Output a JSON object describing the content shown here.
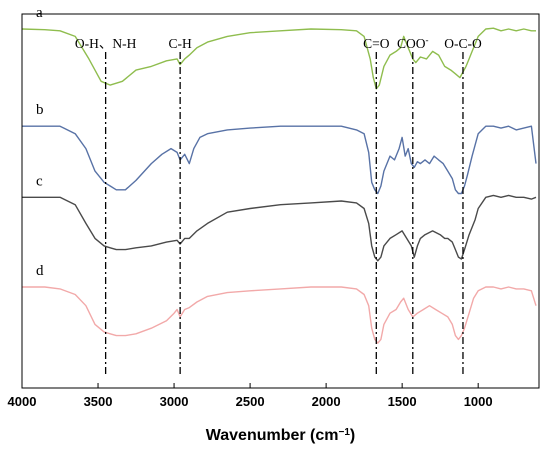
{
  "chart_data": {
    "type": "line",
    "title": "",
    "xlabel": "Wavenumber (cm",
    "xlabel_sup": "−1",
    "xlabel_close": ")",
    "ylabel": "",
    "xlim": [
      4000,
      600
    ],
    "x_reversed": true,
    "y_ticks_shown": false,
    "grid": false,
    "x_ticks": [
      4000,
      3500,
      3000,
      2500,
      2000,
      1500,
      1000
    ],
    "x_tick_labels": [
      "4000",
      "3500",
      "3000",
      "2500",
      "2000",
      "1500",
      "1000"
    ],
    "series": [
      {
        "name": "a",
        "color": "#8fbd4e",
        "x": [
          4000,
          3850,
          3750,
          3650,
          3560,
          3480,
          3420,
          3340,
          3250,
          3150,
          3050,
          2980,
          2960,
          2930,
          2900,
          2850,
          2780,
          2650,
          2500,
          2300,
          2100,
          1900,
          1800,
          1750,
          1710,
          1690,
          1670,
          1650,
          1620,
          1580,
          1540,
          1510,
          1490,
          1460,
          1430,
          1410,
          1380,
          1340,
          1300,
          1260,
          1220,
          1180,
          1150,
          1120,
          1100,
          1080,
          1060,
          1040,
          1000,
          950,
          900,
          850,
          800,
          750,
          700,
          650,
          620
        ],
        "y": [
          0.96,
          0.958,
          0.955,
          0.94,
          0.88,
          0.82,
          0.81,
          0.82,
          0.85,
          0.86,
          0.875,
          0.88,
          0.865,
          0.88,
          0.89,
          0.91,
          0.925,
          0.94,
          0.95,
          0.955,
          0.96,
          0.958,
          0.955,
          0.94,
          0.88,
          0.83,
          0.8,
          0.81,
          0.86,
          0.89,
          0.9,
          0.91,
          0.94,
          0.91,
          0.88,
          0.87,
          0.885,
          0.88,
          0.9,
          0.89,
          0.86,
          0.85,
          0.84,
          0.83,
          0.845,
          0.86,
          0.88,
          0.9,
          0.94,
          0.96,
          0.962,
          0.955,
          0.96,
          0.955,
          0.96,
          0.955,
          0.955
        ]
      },
      {
        "name": "b",
        "color": "#5872a6",
        "x": [
          4000,
          3850,
          3750,
          3650,
          3580,
          3520,
          3460,
          3420,
          3380,
          3320,
          3250,
          3150,
          3080,
          3020,
          2980,
          2960,
          2930,
          2900,
          2870,
          2830,
          2780,
          2650,
          2500,
          2300,
          2100,
          1900,
          1800,
          1750,
          1720,
          1700,
          1680,
          1660,
          1640,
          1620,
          1580,
          1550,
          1520,
          1500,
          1480,
          1460,
          1440,
          1420,
          1400,
          1380,
          1350,
          1320,
          1290,
          1260,
          1230,
          1200,
          1170,
          1150,
          1130,
          1110,
          1090,
          1070,
          1040,
          1000,
          950,
          900,
          850,
          800,
          750,
          700,
          650,
          620
        ],
        "y": [
          0.7,
          0.7,
          0.7,
          0.68,
          0.64,
          0.58,
          0.55,
          0.54,
          0.53,
          0.53,
          0.555,
          0.6,
          0.625,
          0.64,
          0.63,
          0.61,
          0.625,
          0.6,
          0.64,
          0.67,
          0.68,
          0.69,
          0.695,
          0.7,
          0.7,
          0.7,
          0.69,
          0.68,
          0.63,
          0.55,
          0.53,
          0.52,
          0.54,
          0.58,
          0.62,
          0.61,
          0.64,
          0.67,
          0.62,
          0.64,
          0.6,
          0.59,
          0.605,
          0.6,
          0.61,
          0.6,
          0.62,
          0.61,
          0.6,
          0.58,
          0.56,
          0.53,
          0.52,
          0.52,
          0.54,
          0.57,
          0.62,
          0.68,
          0.7,
          0.7,
          0.695,
          0.7,
          0.69,
          0.695,
          0.7,
          0.6
        ]
      },
      {
        "name": "c",
        "color": "#4a4a4a",
        "x": [
          4000,
          3850,
          3750,
          3650,
          3580,
          3520,
          3460,
          3420,
          3380,
          3320,
          3250,
          3150,
          3050,
          2980,
          2960,
          2930,
          2900,
          2850,
          2780,
          2650,
          2500,
          2300,
          2100,
          1900,
          1800,
          1750,
          1720,
          1700,
          1680,
          1660,
          1640,
          1620,
          1580,
          1540,
          1500,
          1470,
          1440,
          1420,
          1400,
          1380,
          1350,
          1300,
          1250,
          1220,
          1200,
          1170,
          1150,
          1130,
          1110,
          1090,
          1060,
          1020,
          1000,
          950,
          900,
          850,
          800,
          750,
          700,
          650,
          620
        ],
        "y": [
          0.51,
          0.51,
          0.51,
          0.49,
          0.44,
          0.4,
          0.38,
          0.375,
          0.37,
          0.37,
          0.375,
          0.38,
          0.39,
          0.395,
          0.385,
          0.4,
          0.4,
          0.42,
          0.44,
          0.47,
          0.48,
          0.49,
          0.495,
          0.5,
          0.495,
          0.48,
          0.44,
          0.38,
          0.35,
          0.34,
          0.35,
          0.38,
          0.4,
          0.41,
          0.42,
          0.4,
          0.38,
          0.35,
          0.38,
          0.4,
          0.41,
          0.42,
          0.41,
          0.4,
          0.4,
          0.39,
          0.37,
          0.35,
          0.345,
          0.37,
          0.41,
          0.45,
          0.48,
          0.51,
          0.515,
          0.51,
          0.515,
          0.51,
          0.51,
          0.505,
          0.51
        ]
      },
      {
        "name": "d",
        "color": "#f2a9a9",
        "x": [
          4000,
          3850,
          3750,
          3650,
          3580,
          3520,
          3460,
          3420,
          3380,
          3320,
          3250,
          3150,
          3050,
          3000,
          2980,
          2960,
          2930,
          2900,
          2850,
          2780,
          2650,
          2500,
          2300,
          2100,
          1900,
          1800,
          1750,
          1720,
          1700,
          1680,
          1660,
          1640,
          1620,
          1580,
          1540,
          1510,
          1490,
          1460,
          1430,
          1400,
          1360,
          1320,
          1280,
          1240,
          1200,
          1170,
          1150,
          1130,
          1110,
          1090,
          1060,
          1030,
          1000,
          950,
          900,
          850,
          800,
          750,
          700,
          650,
          620
        ],
        "y": [
          0.27,
          0.27,
          0.265,
          0.25,
          0.22,
          0.17,
          0.15,
          0.145,
          0.14,
          0.14,
          0.145,
          0.16,
          0.18,
          0.2,
          0.21,
          0.19,
          0.21,
          0.215,
          0.23,
          0.245,
          0.255,
          0.26,
          0.265,
          0.27,
          0.27,
          0.265,
          0.25,
          0.22,
          0.16,
          0.13,
          0.12,
          0.13,
          0.17,
          0.2,
          0.21,
          0.23,
          0.24,
          0.21,
          0.19,
          0.2,
          0.21,
          0.22,
          0.21,
          0.2,
          0.19,
          0.17,
          0.14,
          0.13,
          0.14,
          0.16,
          0.2,
          0.24,
          0.26,
          0.27,
          0.27,
          0.265,
          0.27,
          0.265,
          0.265,
          0.26,
          0.22
        ]
      }
    ],
    "annotations": [
      {
        "label": "O-H、N-H",
        "x": 3450
      },
      {
        "label": "C-H",
        "x": 2960
      },
      {
        "label": "C=O",
        "x": 1670
      },
      {
        "label": "COO",
        "label_sup": "-",
        "x": 1430
      },
      {
        "label": "O-C-O",
        "x": 1100
      }
    ]
  }
}
